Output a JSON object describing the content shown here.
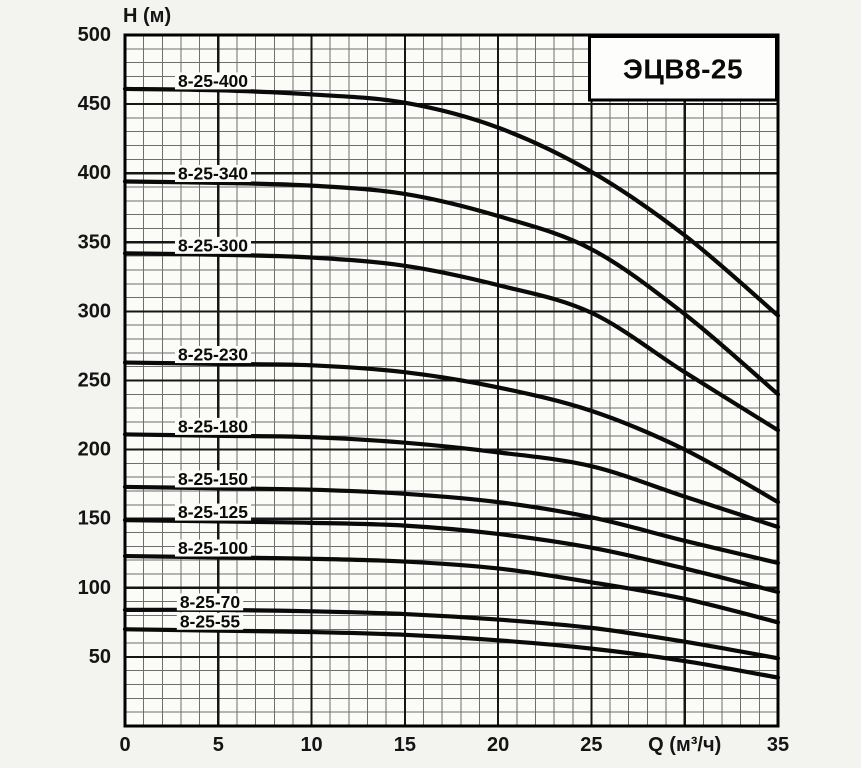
{
  "title": "ЭЦВ8-25",
  "y_axis": {
    "title": "H (м)",
    "tick_labels": [
      "500",
      "450",
      "400",
      "350",
      "300",
      "250",
      "200",
      "150",
      "100",
      "50"
    ],
    "min": 0,
    "max": 500,
    "minor_step": 10,
    "major_step": 50
  },
  "x_axis": {
    "title": "Q (м³/ч)",
    "ticks": [
      {
        "v": 0,
        "label": "0"
      },
      {
        "v": 5,
        "label": "5"
      },
      {
        "v": 10,
        "label": "10"
      },
      {
        "v": 15,
        "label": "15"
      },
      {
        "v": 20,
        "label": "20"
      },
      {
        "v": 25,
        "label": "25"
      },
      {
        "v": 30,
        "label": "Q (м³/ч)",
        "is_axis_title": true
      },
      {
        "v": 35,
        "label": "35"
      }
    ],
    "min": 0,
    "max": 35,
    "minor_step": 1,
    "major_step": 5
  },
  "chart_data": {
    "type": "line",
    "title": "ЭЦВ8-25",
    "xlabel": "Q (м³/ч)",
    "ylabel": "H (м)",
    "xlim": [
      0,
      35
    ],
    "ylim": [
      0,
      500
    ],
    "grid": {
      "minor": {
        "x": 1,
        "y": 10
      },
      "major": {
        "x": 5,
        "y": 50
      }
    },
    "legend_position": "labels above each curve, left side",
    "x": [
      0,
      5,
      10,
      15,
      20,
      25,
      30,
      35
    ],
    "series": [
      {
        "name": "8-25-400",
        "values": [
          461,
          460,
          457,
          451,
          433,
          401,
          355,
          297
        ]
      },
      {
        "name": "8-25-340",
        "values": [
          394,
          393,
          391,
          385,
          369,
          345,
          298,
          240
        ]
      },
      {
        "name": "8-25-300",
        "values": [
          342,
          341,
          339,
          333,
          319,
          299,
          256,
          214
        ]
      },
      {
        "name": "8-25-230",
        "values": [
          263,
          262,
          261,
          256,
          245,
          228,
          200,
          162
        ]
      },
      {
        "name": "8-25-180",
        "values": [
          211,
          210,
          209,
          205,
          198,
          188,
          166,
          144
        ]
      },
      {
        "name": "8-25-150",
        "values": [
          173,
          172,
          171,
          168,
          162,
          151,
          134,
          118
        ]
      },
      {
        "name": "8-25-125",
        "values": [
          149,
          148,
          147,
          145,
          139,
          129,
          114,
          97
        ]
      },
      {
        "name": "8-25-100",
        "values": [
          123,
          122,
          121,
          119,
          114,
          104,
          92,
          75
        ]
      },
      {
        "name": "8-25-70",
        "values": [
          84,
          84,
          83,
          81,
          77,
          71,
          61,
          49
        ]
      },
      {
        "name": "8-25-55",
        "values": [
          70,
          69,
          68,
          66,
          62,
          56,
          47,
          35
        ]
      }
    ]
  },
  "colors": {
    "paper": "#f3f3f0",
    "plot_background": "#fbfbf8",
    "grid_minor": "#6e6e6e",
    "grid_major": "#161616",
    "curve": "#0a0a0a",
    "text": "#141414",
    "title_box_background": "#fdfdfb",
    "border": "#000000"
  }
}
